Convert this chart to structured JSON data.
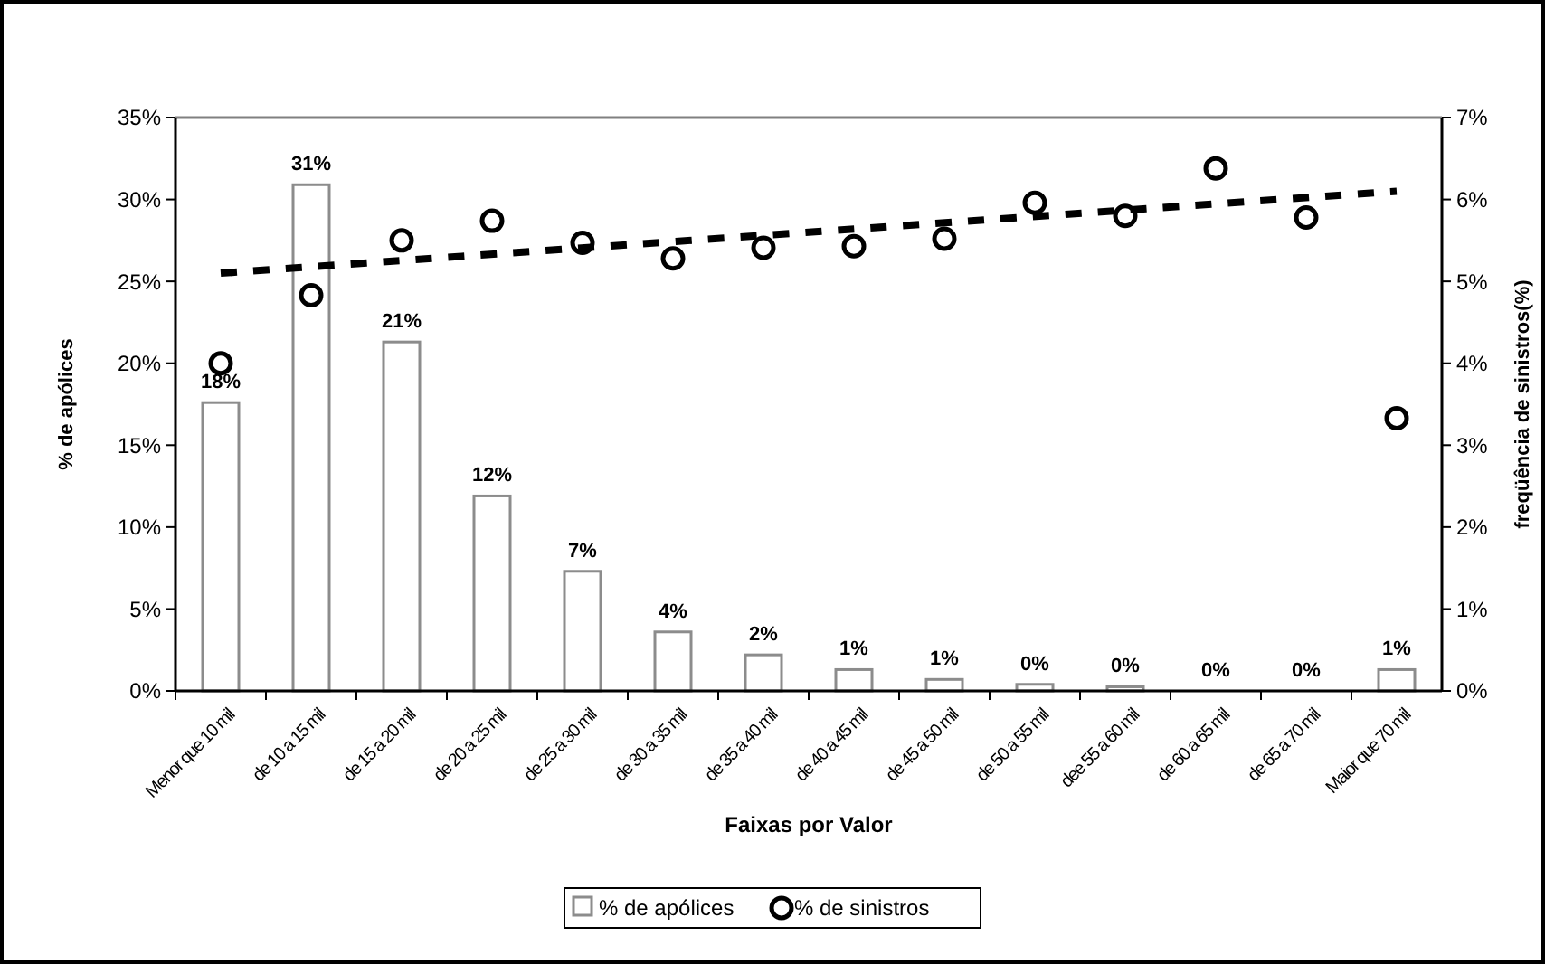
{
  "chart_data": {
    "type": "bar",
    "xlabel": "Faixas por Valor",
    "ylabel": "% de apólices",
    "y2label": "freqüência de sinistros(%)",
    "categories": [
      "Menor que 10 mil",
      "de 10 a 15 mil",
      "de 15 a 20 mil",
      "de 20 a 25 mil",
      "de 25 a 30 mil",
      "de 30 a 35 mil",
      "de 35 a 40 mil",
      "de 40 a 45 mil",
      "de 45 a 50 mil",
      "de 50 a 55 mil",
      "dee 55 a 60 mil",
      "de 60 a 65 mil",
      "de 65 a 70 mil",
      "Maior que 70 mil"
    ],
    "series": [
      {
        "name": "% de apólices",
        "color": "#ffffff",
        "values": [
          17.6,
          30.9,
          21.3,
          11.9,
          7.3,
          3.6,
          2.2,
          1.3,
          0.7,
          0.4,
          0.25,
          0,
          0,
          1.3
        ],
        "value_labels": [
          "18%",
          "31%",
          "21%",
          "12%",
          "7%",
          "4%",
          "2%",
          "1%",
          "1%",
          "0%",
          "0%",
          "0%",
          "0%",
          "1%"
        ]
      },
      {
        "name": "% de sinistros",
        "type": "scatter",
        "axis": "y2",
        "color": "#000000",
        "marker": "circle",
        "values": [
          4.0,
          4.83,
          5.5,
          5.74,
          5.47,
          5.28,
          5.41,
          5.43,
          5.52,
          5.96,
          5.8,
          6.38,
          5.78,
          3.33
        ]
      },
      {
        "type": "line",
        "axis": "y2",
        "color": "#000000",
        "line_style": "dashed",
        "marker": "none",
        "x": [
          "Menor que 10 mil",
          "Maior que 70 mil"
        ],
        "values": [
          5.1,
          6.1
        ]
      }
    ],
    "ylim": [
      0,
      35
    ],
    "yticks": [
      {
        "value": 0,
        "label": "0%"
      },
      {
        "value": 5,
        "label": "5%"
      },
      {
        "value": 10,
        "label": "10%"
      },
      {
        "value": 15,
        "label": "15%"
      },
      {
        "value": 20,
        "label": "20%"
      },
      {
        "value": 25,
        "label": "25%"
      },
      {
        "value": 30,
        "label": "30%"
      },
      {
        "value": 35,
        "label": "35%"
      }
    ],
    "y2lim": [
      0,
      7
    ],
    "y2ticks": [
      {
        "value": 0,
        "label": "0%"
      },
      {
        "value": 1,
        "label": "1%"
      },
      {
        "value": 2,
        "label": "2%"
      },
      {
        "value": 3,
        "label": "3%"
      },
      {
        "value": 4,
        "label": "4%"
      },
      {
        "value": 5,
        "label": "5%"
      },
      {
        "value": 6,
        "label": "6%"
      },
      {
        "value": 7,
        "label": "7%"
      }
    ],
    "grid": false,
    "legend": "bottom"
  }
}
